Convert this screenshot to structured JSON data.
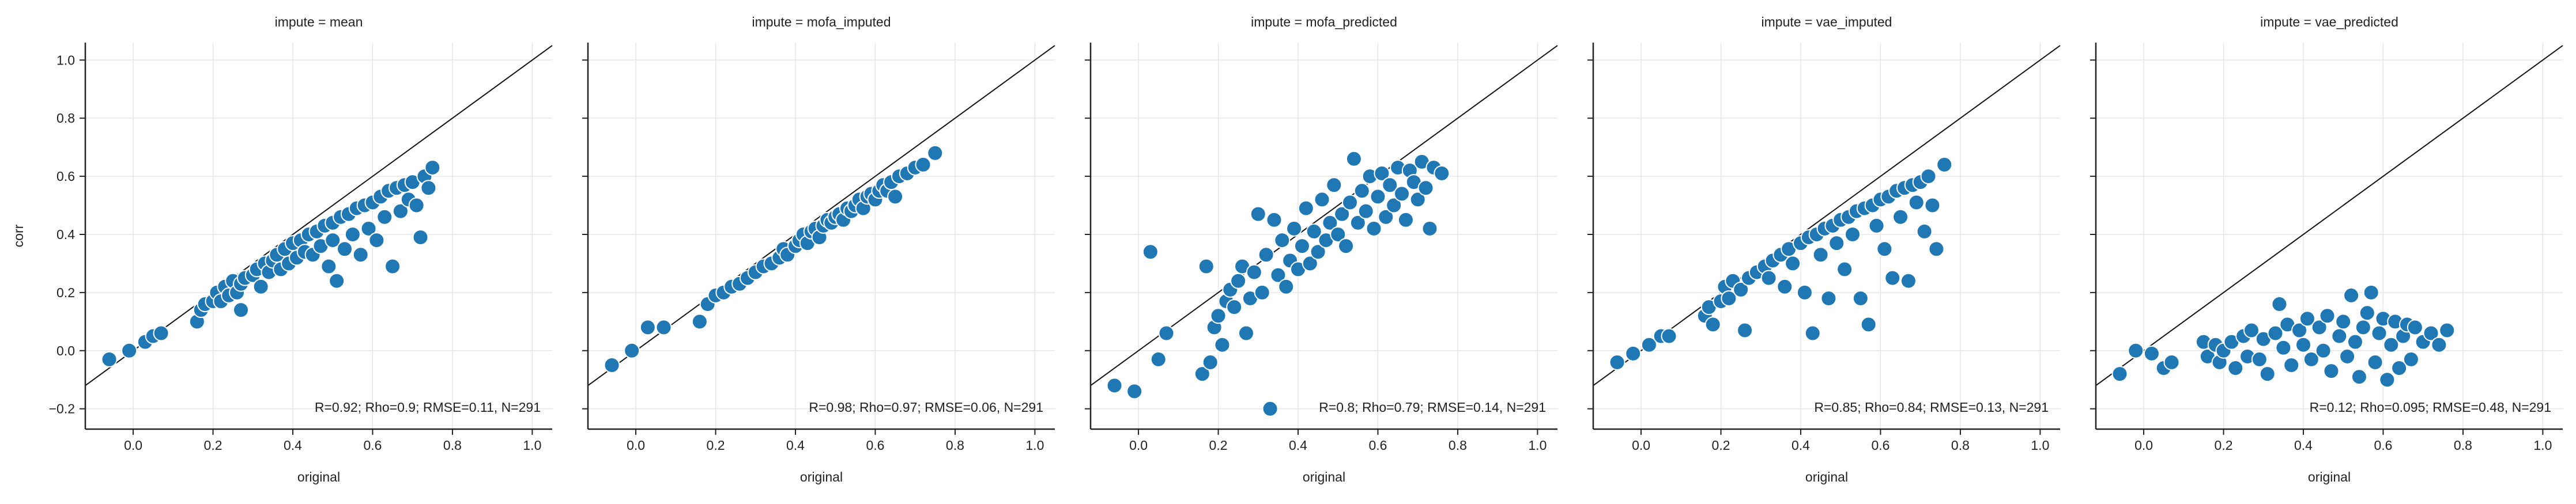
{
  "chart_data": {
    "type": "scatter",
    "shared_ylabel": "corr",
    "xlim": [
      -0.12,
      1.05
    ],
    "ylim": [
      -0.27,
      1.06
    ],
    "xticks": [
      "0.0",
      "0.2",
      "0.4",
      "0.6",
      "0.8",
      "1.0"
    ],
    "yticks": [
      "−0.2",
      "0.0",
      "0.2",
      "0.4",
      "0.6",
      "0.8",
      "1.0"
    ],
    "grid": true,
    "reference_line": "y = x",
    "marker_color": "#1f77b4",
    "panels": [
      {
        "title": "impute = mean",
        "xlabel": "original",
        "stats": "R=0.92; Rho=0.9; RMSE=0.11, N=291",
        "points": [
          [
            -0.06,
            -0.03
          ],
          [
            -0.01,
            0.0
          ],
          [
            0.03,
            0.03
          ],
          [
            0.05,
            0.05
          ],
          [
            0.07,
            0.06
          ],
          [
            0.16,
            0.1
          ],
          [
            0.17,
            0.14
          ],
          [
            0.18,
            0.16
          ],
          [
            0.2,
            0.17
          ],
          [
            0.21,
            0.2
          ],
          [
            0.22,
            0.17
          ],
          [
            0.23,
            0.22
          ],
          [
            0.24,
            0.19
          ],
          [
            0.25,
            0.24
          ],
          [
            0.26,
            0.2
          ],
          [
            0.27,
            0.14
          ],
          [
            0.27,
            0.23
          ],
          [
            0.28,
            0.25
          ],
          [
            0.3,
            0.26
          ],
          [
            0.31,
            0.28
          ],
          [
            0.32,
            0.22
          ],
          [
            0.33,
            0.3
          ],
          [
            0.34,
            0.27
          ],
          [
            0.35,
            0.31
          ],
          [
            0.36,
            0.33
          ],
          [
            0.37,
            0.28
          ],
          [
            0.38,
            0.35
          ],
          [
            0.39,
            0.3
          ],
          [
            0.4,
            0.37
          ],
          [
            0.41,
            0.32
          ],
          [
            0.42,
            0.38
          ],
          [
            0.43,
            0.34
          ],
          [
            0.44,
            0.4
          ],
          [
            0.45,
            0.33
          ],
          [
            0.46,
            0.41
          ],
          [
            0.47,
            0.36
          ],
          [
            0.48,
            0.43
          ],
          [
            0.49,
            0.29
          ],
          [
            0.5,
            0.44
          ],
          [
            0.5,
            0.38
          ],
          [
            0.51,
            0.24
          ],
          [
            0.52,
            0.46
          ],
          [
            0.53,
            0.35
          ],
          [
            0.54,
            0.47
          ],
          [
            0.55,
            0.4
          ],
          [
            0.56,
            0.49
          ],
          [
            0.57,
            0.33
          ],
          [
            0.58,
            0.5
          ],
          [
            0.59,
            0.42
          ],
          [
            0.6,
            0.51
          ],
          [
            0.61,
            0.38
          ],
          [
            0.62,
            0.53
          ],
          [
            0.63,
            0.46
          ],
          [
            0.64,
            0.55
          ],
          [
            0.65,
            0.29
          ],
          [
            0.66,
            0.56
          ],
          [
            0.67,
            0.48
          ],
          [
            0.68,
            0.57
          ],
          [
            0.69,
            0.52
          ],
          [
            0.7,
            0.58
          ],
          [
            0.71,
            0.5
          ],
          [
            0.72,
            0.39
          ],
          [
            0.73,
            0.6
          ],
          [
            0.74,
            0.56
          ],
          [
            0.75,
            0.63
          ]
        ]
      },
      {
        "title": "impute = mofa_imputed",
        "xlabel": "original",
        "stats": "R=0.98; Rho=0.97; RMSE=0.06, N=291",
        "points": [
          [
            -0.06,
            -0.05
          ],
          [
            -0.01,
            0.0
          ],
          [
            0.03,
            0.08
          ],
          [
            0.07,
            0.08
          ],
          [
            0.16,
            0.1
          ],
          [
            0.18,
            0.16
          ],
          [
            0.2,
            0.19
          ],
          [
            0.22,
            0.2
          ],
          [
            0.24,
            0.22
          ],
          [
            0.26,
            0.23
          ],
          [
            0.28,
            0.25
          ],
          [
            0.3,
            0.27
          ],
          [
            0.32,
            0.29
          ],
          [
            0.34,
            0.3
          ],
          [
            0.36,
            0.32
          ],
          [
            0.37,
            0.35
          ],
          [
            0.38,
            0.33
          ],
          [
            0.4,
            0.36
          ],
          [
            0.41,
            0.38
          ],
          [
            0.42,
            0.4
          ],
          [
            0.43,
            0.37
          ],
          [
            0.44,
            0.41
          ],
          [
            0.45,
            0.42
          ],
          [
            0.46,
            0.39
          ],
          [
            0.47,
            0.43
          ],
          [
            0.48,
            0.45
          ],
          [
            0.49,
            0.44
          ],
          [
            0.5,
            0.46
          ],
          [
            0.51,
            0.47
          ],
          [
            0.52,
            0.45
          ],
          [
            0.53,
            0.49
          ],
          [
            0.54,
            0.48
          ],
          [
            0.55,
            0.5
          ],
          [
            0.56,
            0.52
          ],
          [
            0.57,
            0.49
          ],
          [
            0.58,
            0.53
          ],
          [
            0.59,
            0.54
          ],
          [
            0.6,
            0.52
          ],
          [
            0.61,
            0.55
          ],
          [
            0.62,
            0.57
          ],
          [
            0.63,
            0.55
          ],
          [
            0.64,
            0.58
          ],
          [
            0.65,
            0.53
          ],
          [
            0.66,
            0.6
          ],
          [
            0.68,
            0.61
          ],
          [
            0.7,
            0.63
          ],
          [
            0.72,
            0.64
          ],
          [
            0.75,
            0.68
          ]
        ]
      },
      {
        "title": "impute = mofa_predicted",
        "xlabel": "original",
        "stats": "R=0.8; Rho=0.79; RMSE=0.14, N=291",
        "points": [
          [
            -0.06,
            -0.12
          ],
          [
            -0.01,
            -0.14
          ],
          [
            0.03,
            0.34
          ],
          [
            0.05,
            -0.03
          ],
          [
            0.07,
            0.06
          ],
          [
            0.16,
            -0.08
          ],
          [
            0.17,
            0.29
          ],
          [
            0.18,
            -0.04
          ],
          [
            0.19,
            0.08
          ],
          [
            0.2,
            0.12
          ],
          [
            0.21,
            0.02
          ],
          [
            0.22,
            0.17
          ],
          [
            0.23,
            0.21
          ],
          [
            0.24,
            0.15
          ],
          [
            0.25,
            0.24
          ],
          [
            0.26,
            0.29
          ],
          [
            0.27,
            0.06
          ],
          [
            0.28,
            0.18
          ],
          [
            0.29,
            0.27
          ],
          [
            0.3,
            0.47
          ],
          [
            0.31,
            0.2
          ],
          [
            0.32,
            0.33
          ],
          [
            0.33,
            -0.2
          ],
          [
            0.34,
            0.45
          ],
          [
            0.35,
            0.26
          ],
          [
            0.36,
            0.38
          ],
          [
            0.37,
            0.22
          ],
          [
            0.38,
            0.31
          ],
          [
            0.39,
            0.42
          ],
          [
            0.4,
            0.28
          ],
          [
            0.41,
            0.36
          ],
          [
            0.42,
            0.49
          ],
          [
            0.43,
            0.3
          ],
          [
            0.44,
            0.41
          ],
          [
            0.45,
            0.34
          ],
          [
            0.46,
            0.52
          ],
          [
            0.47,
            0.38
          ],
          [
            0.48,
            0.44
          ],
          [
            0.49,
            0.57
          ],
          [
            0.5,
            0.4
          ],
          [
            0.51,
            0.47
          ],
          [
            0.52,
            0.36
          ],
          [
            0.53,
            0.51
          ],
          [
            0.54,
            0.66
          ],
          [
            0.55,
            0.44
          ],
          [
            0.56,
            0.55
          ],
          [
            0.57,
            0.48
          ],
          [
            0.58,
            0.6
          ],
          [
            0.59,
            0.42
          ],
          [
            0.6,
            0.53
          ],
          [
            0.61,
            0.61
          ],
          [
            0.62,
            0.46
          ],
          [
            0.63,
            0.57
          ],
          [
            0.64,
            0.5
          ],
          [
            0.65,
            0.63
          ],
          [
            0.66,
            0.54
          ],
          [
            0.67,
            0.45
          ],
          [
            0.68,
            0.62
          ],
          [
            0.69,
            0.58
          ],
          [
            0.7,
            0.52
          ],
          [
            0.71,
            0.65
          ],
          [
            0.72,
            0.56
          ],
          [
            0.73,
            0.42
          ],
          [
            0.74,
            0.63
          ],
          [
            0.76,
            0.61
          ]
        ]
      },
      {
        "title": "impute = vae_imputed",
        "xlabel": "original",
        "stats": "R=0.85; Rho=0.84; RMSE=0.13, N=291",
        "points": [
          [
            -0.06,
            -0.04
          ],
          [
            -0.02,
            -0.01
          ],
          [
            0.02,
            0.02
          ],
          [
            0.05,
            0.05
          ],
          [
            0.07,
            0.05
          ],
          [
            0.16,
            0.12
          ],
          [
            0.17,
            0.15
          ],
          [
            0.18,
            0.09
          ],
          [
            0.2,
            0.17
          ],
          [
            0.21,
            0.22
          ],
          [
            0.22,
            0.18
          ],
          [
            0.23,
            0.24
          ],
          [
            0.25,
            0.21
          ],
          [
            0.26,
            0.07
          ],
          [
            0.27,
            0.25
          ],
          [
            0.29,
            0.27
          ],
          [
            0.31,
            0.29
          ],
          [
            0.32,
            0.25
          ],
          [
            0.33,
            0.31
          ],
          [
            0.35,
            0.33
          ],
          [
            0.36,
            0.22
          ],
          [
            0.37,
            0.35
          ],
          [
            0.38,
            0.3
          ],
          [
            0.4,
            0.37
          ],
          [
            0.41,
            0.2
          ],
          [
            0.42,
            0.39
          ],
          [
            0.43,
            0.06
          ],
          [
            0.44,
            0.4
          ],
          [
            0.45,
            0.33
          ],
          [
            0.46,
            0.42
          ],
          [
            0.47,
            0.18
          ],
          [
            0.48,
            0.43
          ],
          [
            0.49,
            0.37
          ],
          [
            0.5,
            0.45
          ],
          [
            0.51,
            0.28
          ],
          [
            0.52,
            0.46
          ],
          [
            0.53,
            0.4
          ],
          [
            0.54,
            0.48
          ],
          [
            0.55,
            0.18
          ],
          [
            0.56,
            0.49
          ],
          [
            0.57,
            0.09
          ],
          [
            0.58,
            0.5
          ],
          [
            0.59,
            0.43
          ],
          [
            0.6,
            0.52
          ],
          [
            0.61,
            0.35
          ],
          [
            0.62,
            0.53
          ],
          [
            0.63,
            0.25
          ],
          [
            0.64,
            0.55
          ],
          [
            0.65,
            0.46
          ],
          [
            0.66,
            0.56
          ],
          [
            0.67,
            0.24
          ],
          [
            0.68,
            0.57
          ],
          [
            0.69,
            0.51
          ],
          [
            0.7,
            0.58
          ],
          [
            0.71,
            0.41
          ],
          [
            0.72,
            0.6
          ],
          [
            0.73,
            0.5
          ],
          [
            0.74,
            0.35
          ],
          [
            0.76,
            0.64
          ]
        ]
      },
      {
        "title": "impute = vae_predicted",
        "xlabel": "original",
        "stats": "R=0.12; Rho=0.095; RMSE=0.48, N=291",
        "points": [
          [
            -0.06,
            -0.08
          ],
          [
            -0.02,
            0.0
          ],
          [
            0.02,
            -0.01
          ],
          [
            0.05,
            -0.06
          ],
          [
            0.07,
            -0.04
          ],
          [
            0.15,
            0.03
          ],
          [
            0.16,
            -0.02
          ],
          [
            0.18,
            0.02
          ],
          [
            0.19,
            -0.04
          ],
          [
            0.2,
            0.0
          ],
          [
            0.22,
            0.03
          ],
          [
            0.23,
            -0.06
          ],
          [
            0.25,
            0.05
          ],
          [
            0.26,
            -0.02
          ],
          [
            0.27,
            0.07
          ],
          [
            0.29,
            -0.03
          ],
          [
            0.3,
            0.04
          ],
          [
            0.31,
            -0.08
          ],
          [
            0.33,
            0.06
          ],
          [
            0.34,
            0.16
          ],
          [
            0.35,
            0.01
          ],
          [
            0.36,
            0.09
          ],
          [
            0.37,
            -0.05
          ],
          [
            0.39,
            0.07
          ],
          [
            0.4,
            0.02
          ],
          [
            0.41,
            0.11
          ],
          [
            0.42,
            -0.03
          ],
          [
            0.44,
            0.08
          ],
          [
            0.45,
            0.0
          ],
          [
            0.46,
            0.12
          ],
          [
            0.47,
            -0.07
          ],
          [
            0.49,
            0.05
          ],
          [
            0.5,
            0.1
          ],
          [
            0.51,
            -0.02
          ],
          [
            0.52,
            0.19
          ],
          [
            0.53,
            0.03
          ],
          [
            0.54,
            -0.09
          ],
          [
            0.55,
            0.08
          ],
          [
            0.56,
            0.13
          ],
          [
            0.57,
            0.2
          ],
          [
            0.58,
            -0.04
          ],
          [
            0.59,
            0.06
          ],
          [
            0.6,
            0.11
          ],
          [
            0.61,
            -0.1
          ],
          [
            0.62,
            0.02
          ],
          [
            0.63,
            0.1
          ],
          [
            0.64,
            -0.06
          ],
          [
            0.65,
            0.05
          ],
          [
            0.66,
            0.09
          ],
          [
            0.67,
            -0.03
          ],
          [
            0.68,
            0.08
          ],
          [
            0.7,
            0.03
          ],
          [
            0.72,
            0.06
          ],
          [
            0.74,
            0.02
          ],
          [
            0.76,
            0.07
          ]
        ]
      }
    ]
  }
}
